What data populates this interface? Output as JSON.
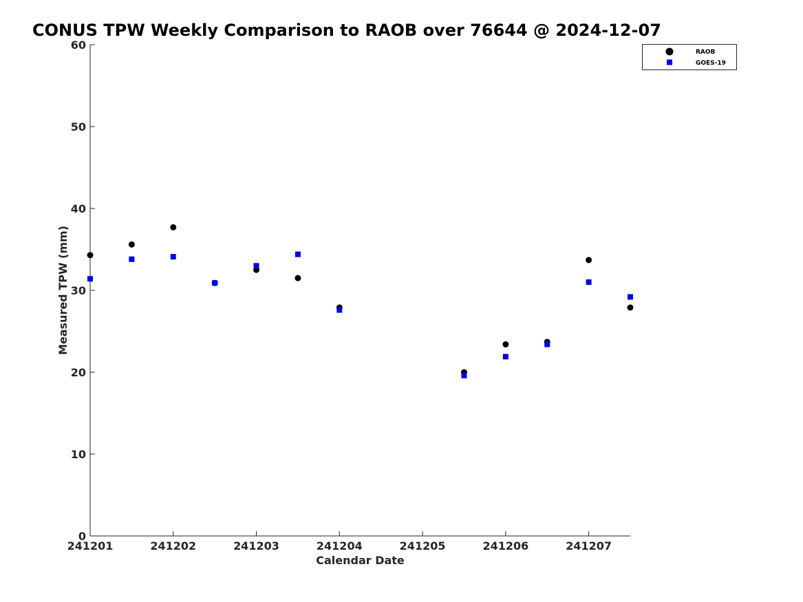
{
  "chart_data": {
    "type": "scatter",
    "title": "CONUS TPW Weekly Comparison to RAOB over 76644 @ 2024-12-07",
    "xlabel": "Calendar Date",
    "ylabel": "Measured TPW (mm)",
    "xlim": [
      241201,
      241207.5
    ],
    "ylim": [
      0,
      60
    ],
    "x_ticks": [
      241201,
      241202,
      241203,
      241204,
      241205,
      241206,
      241207
    ],
    "x_tick_labels": [
      "241201",
      "241202",
      "241203",
      "241204",
      "241205",
      "241206",
      "241207"
    ],
    "y_ticks": [
      0,
      10,
      20,
      30,
      40,
      50,
      60
    ],
    "y_tick_labels": [
      "0",
      "10",
      "20",
      "30",
      "40",
      "50",
      "60"
    ],
    "grid": false,
    "legend_position": "top-right",
    "series": [
      {
        "name": "RAOB",
        "marker": "circle",
        "color": "#000000",
        "points": [
          {
            "x": 241201.0,
            "y": 34.3
          },
          {
            "x": 241201.5,
            "y": 35.6
          },
          {
            "x": 241202.0,
            "y": 37.7
          },
          {
            "x": 241202.5,
            "y": 30.9
          },
          {
            "x": 241203.0,
            "y": 32.5
          },
          {
            "x": 241203.5,
            "y": 31.5
          },
          {
            "x": 241204.0,
            "y": 27.9
          },
          {
            "x": 241205.5,
            "y": 20.0
          },
          {
            "x": 241206.0,
            "y": 23.4
          },
          {
            "x": 241206.5,
            "y": 23.7
          },
          {
            "x": 241207.0,
            "y": 33.7
          },
          {
            "x": 241207.5,
            "y": 27.9
          }
        ]
      },
      {
        "name": "GOES-19",
        "marker": "square",
        "color": "#0000e6",
        "points": [
          {
            "x": 241201.0,
            "y": 31.4
          },
          {
            "x": 241201.5,
            "y": 33.8
          },
          {
            "x": 241202.0,
            "y": 34.1
          },
          {
            "x": 241202.5,
            "y": 30.9
          },
          {
            "x": 241203.0,
            "y": 33.0
          },
          {
            "x": 241203.5,
            "y": 34.4
          },
          {
            "x": 241204.0,
            "y": 27.6
          },
          {
            "x": 241205.5,
            "y": 19.6
          },
          {
            "x": 241206.0,
            "y": 21.9
          },
          {
            "x": 241206.5,
            "y": 23.4
          },
          {
            "x": 241207.0,
            "y": 31.0
          },
          {
            "x": 241207.5,
            "y": 29.2
          }
        ]
      }
    ]
  }
}
